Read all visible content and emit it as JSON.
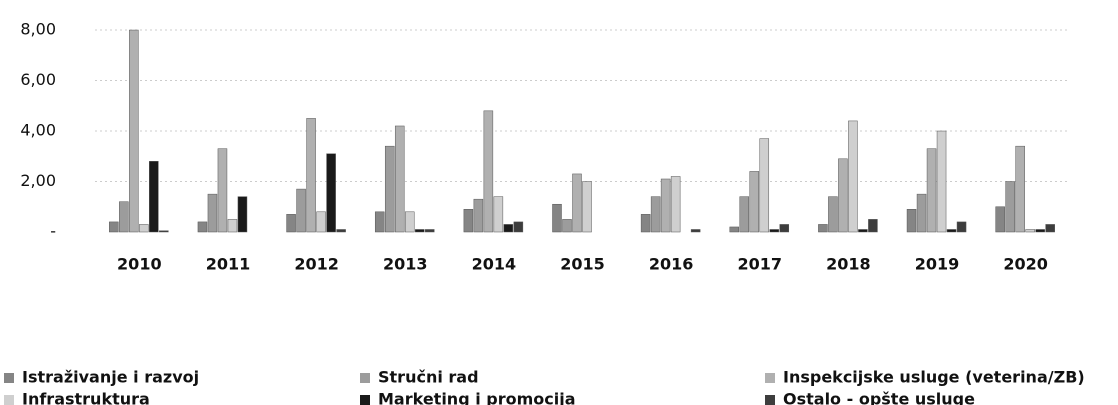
{
  "chart_data": {
    "type": "bar",
    "categories": [
      "2010",
      "2011",
      "2012",
      "2013",
      "2014",
      "2015",
      "2016",
      "2017",
      "2018",
      "2019",
      "2020"
    ],
    "series": [
      {
        "name": "Istraživanje i razvoj",
        "color": "#858585",
        "values": [
          0.4,
          0.4,
          0.7,
          0.8,
          0.9,
          1.1,
          0.7,
          0.2,
          0.3,
          0.9,
          1.0
        ]
      },
      {
        "name": "Stručni rad",
        "color": "#9c9c9c",
        "values": [
          1.2,
          1.5,
          1.7,
          3.4,
          1.3,
          0.5,
          1.4,
          1.4,
          1.4,
          1.5,
          2.0
        ]
      },
      {
        "name": "Inspekcijske usluge (veterina/ZB)",
        "color": "#b0b0b0",
        "values": [
          8.0,
          3.3,
          4.5,
          4.2,
          4.8,
          2.3,
          2.1,
          2.4,
          2.9,
          3.3,
          3.4
        ]
      },
      {
        "name": "Infrastruktura",
        "color": "#cfcfcf",
        "values": [
          0.3,
          0.5,
          0.8,
          0.8,
          1.4,
          2.0,
          2.2,
          3.7,
          4.4,
          4.0,
          0.1
        ]
      },
      {
        "name": "Marketing i promocija",
        "color": "#1a1a1a",
        "values": [
          2.8,
          1.4,
          3.1,
          0.1,
          0.3,
          0.0,
          0.0,
          0.1,
          0.1,
          0.1,
          0.1
        ]
      },
      {
        "name": "Ostalo - opšte usluge",
        "color": "#3d3d3d",
        "values": [
          0.05,
          0.0,
          0.1,
          0.1,
          0.4,
          0.0,
          0.1,
          0.3,
          0.5,
          0.4,
          0.3
        ]
      }
    ],
    "ylim": [
      0,
      8.2
    ],
    "yticks": [
      {
        "value": 0,
        "label": "-"
      },
      {
        "value": 2,
        "label": "2,00"
      },
      {
        "value": 4,
        "label": "4,00"
      },
      {
        "value": 6,
        "label": "6,00"
      },
      {
        "value": 8,
        "label": "8,00"
      }
    ],
    "grid": true,
    "legend": "bottom"
  }
}
